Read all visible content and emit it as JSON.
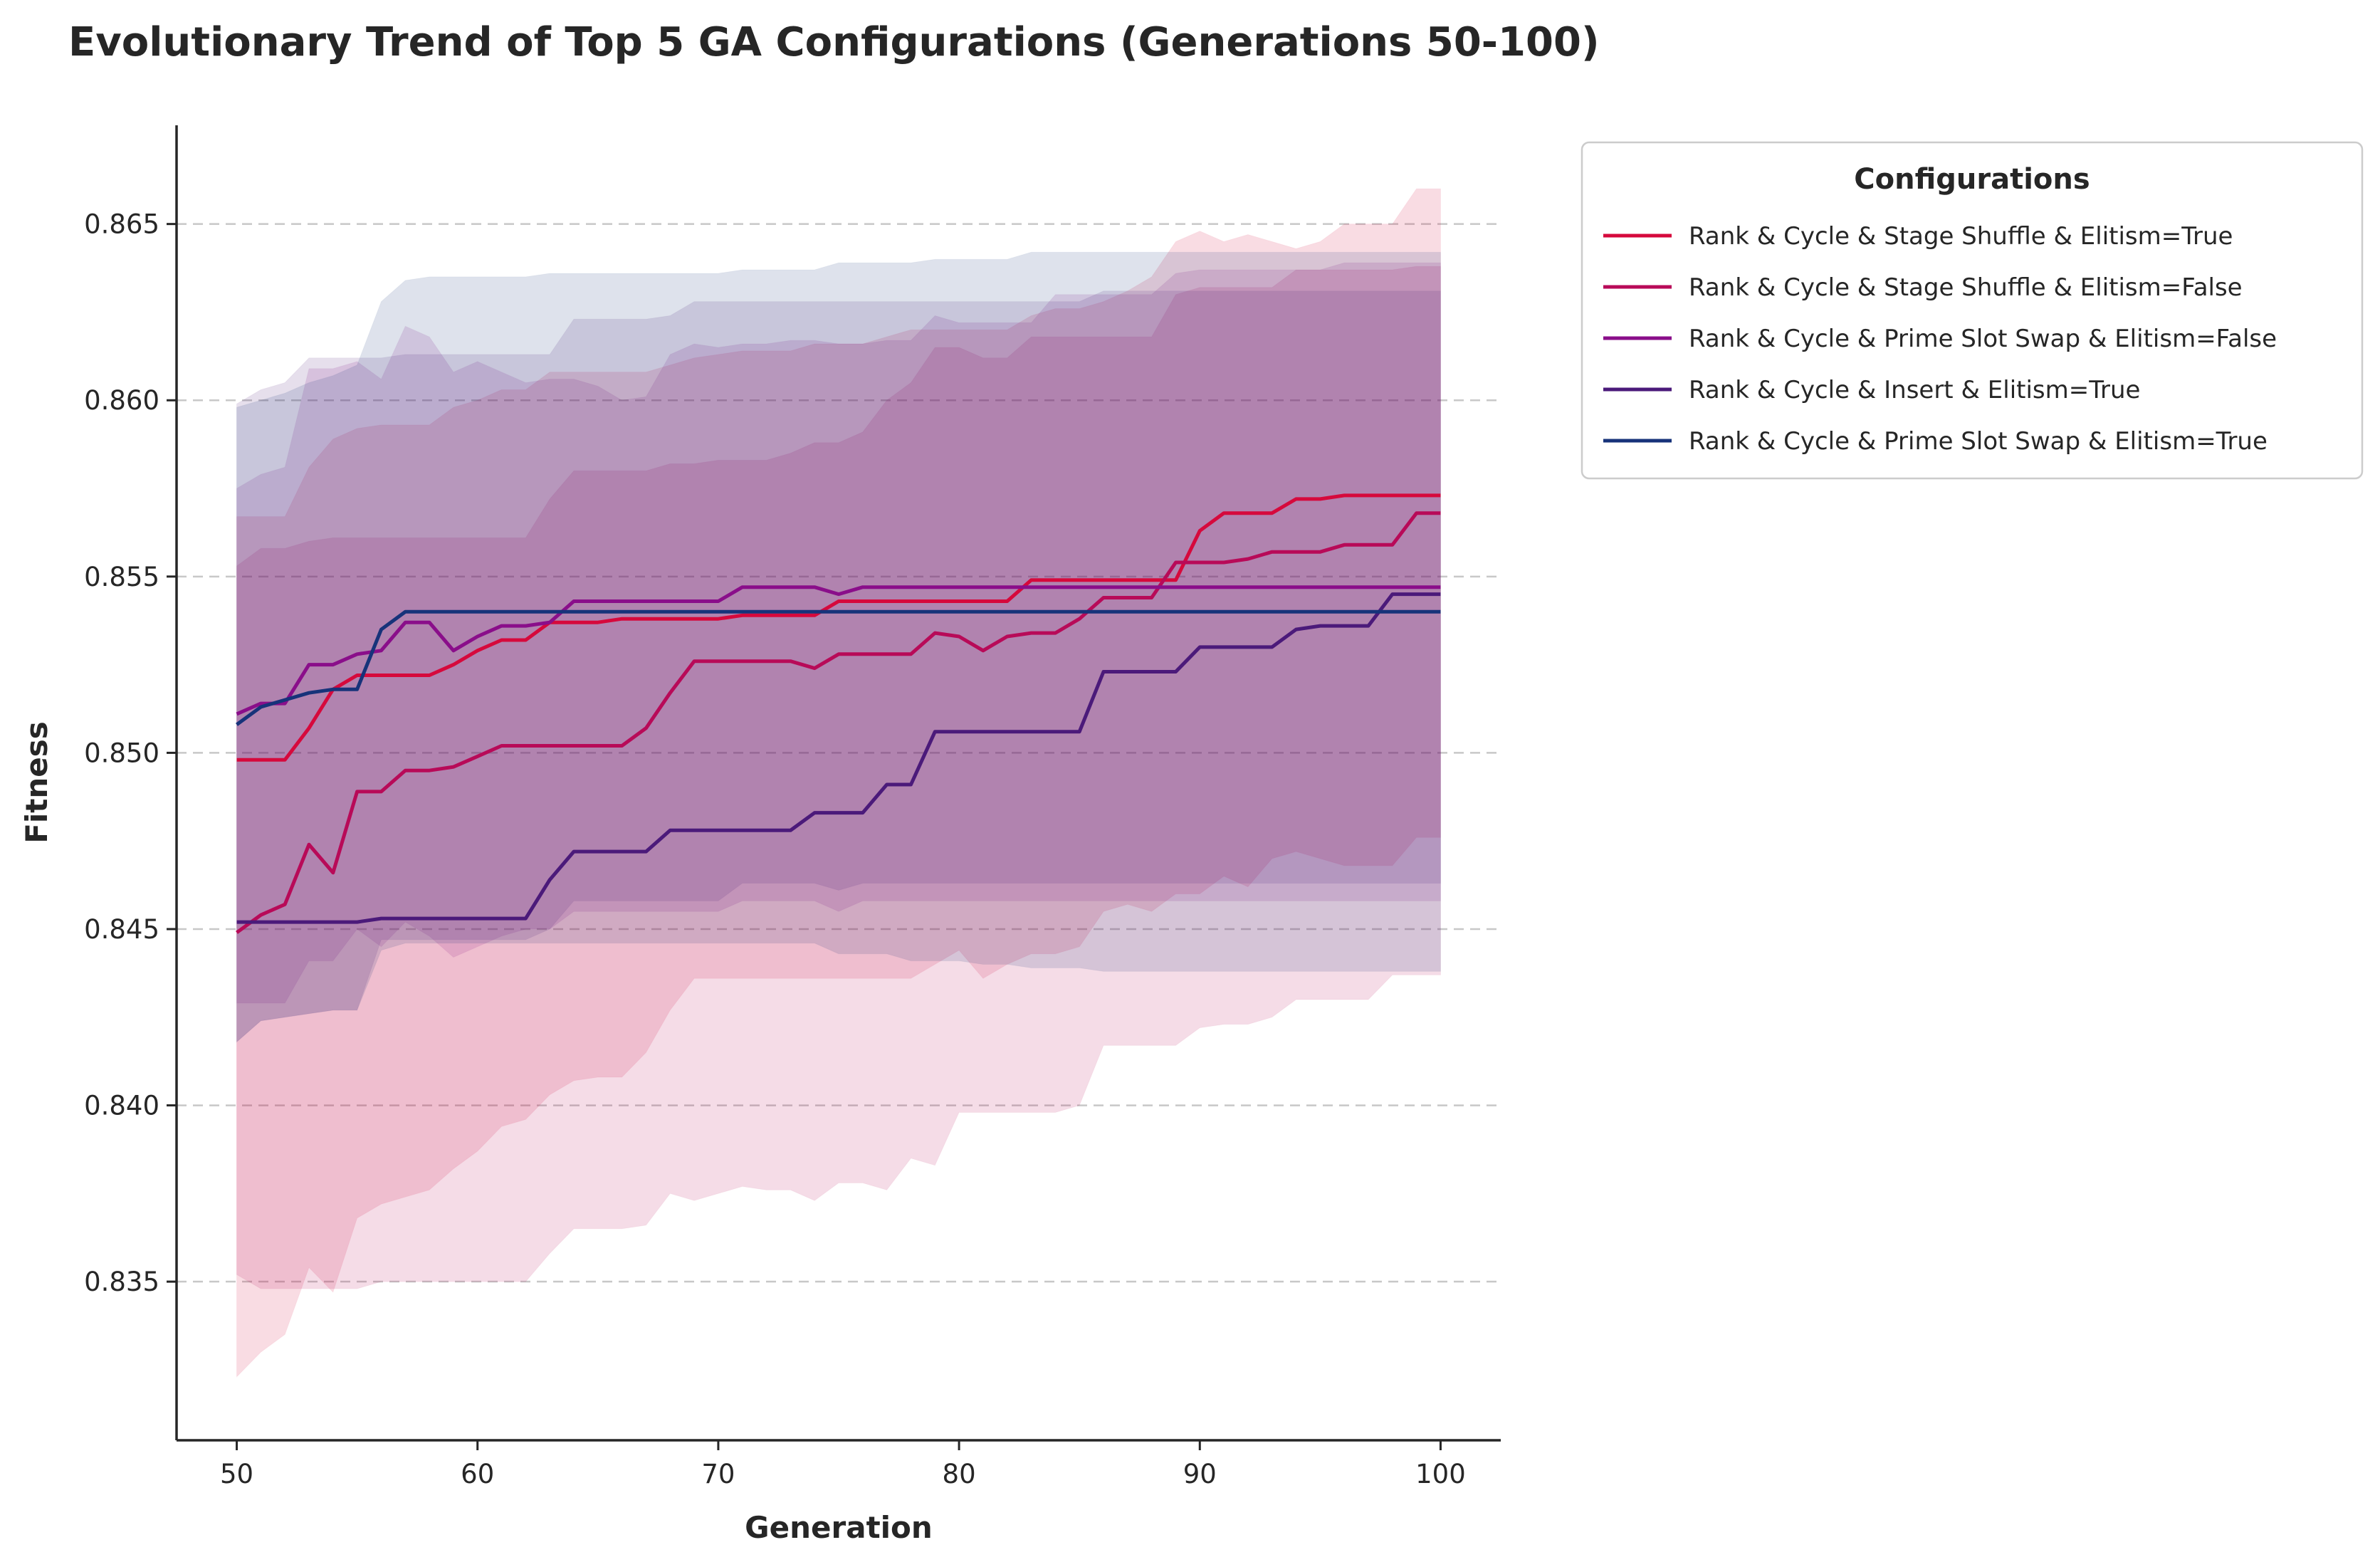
{
  "chart_data": {
    "type": "line",
    "title": "Evolutionary Trend of Top 5 GA Configurations (Generations 50-100)",
    "xlabel": "Generation",
    "ylabel": "Fitness",
    "xlim": [
      47.5,
      102.5
    ],
    "ylim": [
      0.8305,
      0.8678
    ],
    "xticks": [
      50,
      60,
      70,
      80,
      90,
      100
    ],
    "yticks": [
      0.835,
      0.84,
      0.845,
      0.85,
      0.855,
      0.86,
      0.865
    ],
    "xtick_labels": [
      "50",
      "60",
      "70",
      "80",
      "90",
      "100"
    ],
    "ytick_labels": [
      "0.835",
      "0.840",
      "0.845",
      "0.850",
      "0.855",
      "0.860",
      "0.865"
    ],
    "grid": "y-dashed",
    "legend": {
      "title": "Configurations",
      "placement": "outside-top-right"
    },
    "x": [
      50,
      51,
      52,
      53,
      54,
      55,
      56,
      57,
      58,
      59,
      60,
      61,
      62,
      63,
      64,
      65,
      66,
      67,
      68,
      69,
      70,
      71,
      72,
      73,
      74,
      75,
      76,
      77,
      78,
      79,
      80,
      81,
      82,
      83,
      84,
      85,
      86,
      87,
      88,
      89,
      90,
      91,
      92,
      93,
      94,
      95,
      96,
      97,
      98,
      99,
      100
    ],
    "series": [
      {
        "name": "Rank & Cycle & Stage Shuffle & Elitism=True",
        "color": "#d6093c",
        "values": [
          0.8498,
          0.8498,
          0.8498,
          0.8507,
          0.8518,
          0.8522,
          0.8522,
          0.8522,
          0.8522,
          0.8525,
          0.8529,
          0.8532,
          0.8532,
          0.8537,
          0.8537,
          0.8537,
          0.8538,
          0.8538,
          0.8538,
          0.8538,
          0.8538,
          0.8539,
          0.8539,
          0.8539,
          0.8539,
          0.8543,
          0.8543,
          0.8543,
          0.8543,
          0.8543,
          0.8543,
          0.8543,
          0.8543,
          0.8549,
          0.8549,
          0.8549,
          0.8549,
          0.8549,
          0.8549,
          0.8549,
          0.8563,
          0.8568,
          0.8568,
          0.8568,
          0.8572,
          0.8572,
          0.8573,
          0.8573,
          0.8573,
          0.8573,
          0.8573
        ],
        "upper": [
          0.8567,
          0.8567,
          0.8567,
          0.8581,
          0.8589,
          0.8592,
          0.8593,
          0.8593,
          0.8593,
          0.8598,
          0.86,
          0.8603,
          0.8603,
          0.8608,
          0.8608,
          0.8608,
          0.8608,
          0.8608,
          0.861,
          0.8612,
          0.8613,
          0.8614,
          0.8614,
          0.8614,
          0.8616,
          0.8616,
          0.8616,
          0.8618,
          0.862,
          0.862,
          0.862,
          0.862,
          0.862,
          0.8624,
          0.8626,
          0.8626,
          0.8628,
          0.8631,
          0.8635,
          0.8645,
          0.8648,
          0.8645,
          0.8647,
          0.8645,
          0.8643,
          0.8645,
          0.865,
          0.865,
          0.865,
          0.866,
          0.866
        ],
        "lower": [
          0.8323,
          0.833,
          0.8335,
          0.8354,
          0.8347,
          0.8368,
          0.8372,
          0.8374,
          0.8376,
          0.8382,
          0.8387,
          0.8394,
          0.8396,
          0.8403,
          0.8407,
          0.8408,
          0.8408,
          0.8415,
          0.8427,
          0.8436,
          0.8436,
          0.8436,
          0.8436,
          0.8436,
          0.8436,
          0.8436,
          0.8436,
          0.8436,
          0.8436,
          0.844,
          0.8444,
          0.8436,
          0.844,
          0.8443,
          0.8443,
          0.8445,
          0.8455,
          0.8457,
          0.8455,
          0.846,
          0.846,
          0.8465,
          0.8462,
          0.847,
          0.8472,
          0.847,
          0.8468,
          0.8468,
          0.8468,
          0.8476,
          0.8476
        ]
      },
      {
        "name": "Rank & Cycle & Stage Shuffle & Elitism=False",
        "color": "#b80a58",
        "values": [
          0.8449,
          0.8454,
          0.8457,
          0.8474,
          0.8466,
          0.8489,
          0.8489,
          0.8495,
          0.8495,
          0.8496,
          0.8499,
          0.8502,
          0.8502,
          0.8502,
          0.8502,
          0.8502,
          0.8502,
          0.8507,
          0.8517,
          0.8526,
          0.8526,
          0.8526,
          0.8526,
          0.8526,
          0.8524,
          0.8528,
          0.8528,
          0.8528,
          0.8528,
          0.8534,
          0.8533,
          0.8529,
          0.8533,
          0.8534,
          0.8534,
          0.8538,
          0.8544,
          0.8544,
          0.8544,
          0.8554,
          0.8554,
          0.8554,
          0.8555,
          0.8557,
          0.8557,
          0.8557,
          0.8559,
          0.8559,
          0.8559,
          0.8568,
          0.8568
        ],
        "upper": [
          0.8553,
          0.8558,
          0.8558,
          0.856,
          0.8561,
          0.8561,
          0.8561,
          0.8561,
          0.8561,
          0.8561,
          0.8561,
          0.8561,
          0.8561,
          0.8572,
          0.858,
          0.858,
          0.858,
          0.858,
          0.8582,
          0.8582,
          0.8583,
          0.8583,
          0.8583,
          0.8585,
          0.8588,
          0.8588,
          0.8591,
          0.86,
          0.8605,
          0.8615,
          0.8615,
          0.8612,
          0.8612,
          0.8618,
          0.8618,
          0.8618,
          0.8618,
          0.8618,
          0.8618,
          0.863,
          0.8632,
          0.8632,
          0.8632,
          0.8632,
          0.8637,
          0.8637,
          0.8637,
          0.8637,
          0.8637,
          0.8638,
          0.8638
        ],
        "lower": [
          0.8352,
          0.8348,
          0.8348,
          0.8348,
          0.8348,
          0.8348,
          0.835,
          0.835,
          0.835,
          0.835,
          0.835,
          0.835,
          0.835,
          0.8358,
          0.8365,
          0.8365,
          0.8365,
          0.8366,
          0.8375,
          0.8373,
          0.8375,
          0.8377,
          0.8376,
          0.8376,
          0.8373,
          0.8378,
          0.8378,
          0.8376,
          0.8385,
          0.8383,
          0.8398,
          0.8398,
          0.8398,
          0.8398,
          0.8398,
          0.84,
          0.8417,
          0.8417,
          0.8417,
          0.8417,
          0.8422,
          0.8423,
          0.8423,
          0.8425,
          0.843,
          0.843,
          0.843,
          0.843,
          0.8437,
          0.8437,
          0.8437
        ]
      },
      {
        "name": "Rank & Cycle & Prime Slot Swap & Elitism=False",
        "color": "#8a0e8a",
        "values": [
          0.8511,
          0.8514,
          0.8514,
          0.8525,
          0.8525,
          0.8528,
          0.8529,
          0.8537,
          0.8537,
          0.8529,
          0.8533,
          0.8536,
          0.8536,
          0.8537,
          0.8543,
          0.8543,
          0.8543,
          0.8543,
          0.8543,
          0.8543,
          0.8543,
          0.8547,
          0.8547,
          0.8547,
          0.8547,
          0.8545,
          0.8547,
          0.8547,
          0.8547,
          0.8547,
          0.8547,
          0.8547,
          0.8547,
          0.8547,
          0.8547,
          0.8547,
          0.8547,
          0.8547,
          0.8547,
          0.8547,
          0.8547,
          0.8547,
          0.8547,
          0.8547,
          0.8547,
          0.8547,
          0.8547,
          0.8547,
          0.8547,
          0.8547,
          0.8547
        ],
        "upper": [
          0.8575,
          0.8579,
          0.8581,
          0.8609,
          0.8609,
          0.8611,
          0.8606,
          0.8621,
          0.8618,
          0.8608,
          0.8611,
          0.8608,
          0.8605,
          0.8606,
          0.8606,
          0.8604,
          0.86,
          0.8601,
          0.8613,
          0.8616,
          0.8615,
          0.8616,
          0.8616,
          0.8617,
          0.8617,
          0.8616,
          0.8616,
          0.8617,
          0.8617,
          0.8624,
          0.8622,
          0.8622,
          0.8622,
          0.8622,
          0.863,
          0.863,
          0.863,
          0.863,
          0.863,
          0.8636,
          0.8637,
          0.8637,
          0.8637,
          0.8637,
          0.8637,
          0.8637,
          0.8639,
          0.8639,
          0.8639,
          0.8639,
          0.8639
        ],
        "lower": [
          0.8429,
          0.8429,
          0.8429,
          0.8441,
          0.8441,
          0.845,
          0.8445,
          0.8452,
          0.8448,
          0.8442,
          0.8445,
          0.8448,
          0.845,
          0.845,
          0.8455,
          0.8455,
          0.8455,
          0.8455,
          0.8455,
          0.8455,
          0.8455,
          0.8458,
          0.8458,
          0.8458,
          0.8458,
          0.8455,
          0.8458,
          0.8458,
          0.8458,
          0.8458,
          0.8458,
          0.8458,
          0.8458,
          0.8458,
          0.8458,
          0.8458,
          0.8458,
          0.8458,
          0.8458,
          0.8458,
          0.8458,
          0.8458,
          0.8458,
          0.8458,
          0.8458,
          0.8458,
          0.8458,
          0.8458,
          0.8458,
          0.8458,
          0.8458
        ]
      },
      {
        "name": "Rank & Cycle & Insert & Elitism=True",
        "color": "#4b1a7a",
        "values": [
          0.8452,
          0.8452,
          0.8452,
          0.8452,
          0.8452,
          0.8452,
          0.8453,
          0.8453,
          0.8453,
          0.8453,
          0.8453,
          0.8453,
          0.8453,
          0.8464,
          0.8472,
          0.8472,
          0.8472,
          0.8472,
          0.8478,
          0.8478,
          0.8478,
          0.8478,
          0.8478,
          0.8478,
          0.8483,
          0.8483,
          0.8483,
          0.8491,
          0.8491,
          0.8506,
          0.8506,
          0.8506,
          0.8506,
          0.8506,
          0.8506,
          0.8506,
          0.8523,
          0.8523,
          0.8523,
          0.8523,
          0.853,
          0.853,
          0.853,
          0.853,
          0.8535,
          0.8536,
          0.8536,
          0.8536,
          0.8545,
          0.8545,
          0.8545
        ],
        "upper": [
          0.8599,
          0.8603,
          0.8605,
          0.8612,
          0.8612,
          0.8612,
          0.8612,
          0.8613,
          0.8613,
          0.8613,
          0.8613,
          0.8613,
          0.8613,
          0.8613,
          0.8623,
          0.8623,
          0.8623,
          0.8623,
          0.8624,
          0.8628,
          0.8628,
          0.8628,
          0.8628,
          0.8628,
          0.8628,
          0.8628,
          0.8628,
          0.8628,
          0.8628,
          0.8628,
          0.8628,
          0.8628,
          0.8628,
          0.8628,
          0.8628,
          0.8628,
          0.8631,
          0.8631,
          0.8631,
          0.8631,
          0.8631,
          0.8631,
          0.8631,
          0.8631,
          0.8631,
          0.8631,
          0.8631,
          0.8631,
          0.8631,
          0.8631,
          0.8631
        ],
        "lower": [
          0.8418,
          0.8424,
          0.8425,
          0.8426,
          0.8427,
          0.8427,
          0.8447,
          0.8447,
          0.8447,
          0.8447,
          0.8447,
          0.8447,
          0.8447,
          0.845,
          0.8458,
          0.8458,
          0.8458,
          0.8458,
          0.8458,
          0.8458,
          0.8458,
          0.8463,
          0.8463,
          0.8463,
          0.8463,
          0.8461,
          0.8463,
          0.8463,
          0.8463,
          0.8463,
          0.8463,
          0.8463,
          0.8463,
          0.8463,
          0.8463,
          0.8463,
          0.8463,
          0.8463,
          0.8463,
          0.8463,
          0.8463,
          0.8463,
          0.8463,
          0.8463,
          0.8463,
          0.8463,
          0.8463,
          0.8463,
          0.8463,
          0.8463,
          0.8463
        ]
      },
      {
        "name": "Rank & Cycle & Prime Slot Swap & Elitism=True",
        "color": "#17337a",
        "values": [
          0.8508,
          0.8513,
          0.8515,
          0.8517,
          0.8518,
          0.8518,
          0.8535,
          0.854,
          0.854,
          0.854,
          0.854,
          0.854,
          0.854,
          0.854,
          0.854,
          0.854,
          0.854,
          0.854,
          0.854,
          0.854,
          0.854,
          0.854,
          0.854,
          0.854,
          0.854,
          0.854,
          0.854,
          0.854,
          0.854,
          0.854,
          0.854,
          0.854,
          0.854,
          0.854,
          0.854,
          0.854,
          0.854,
          0.854,
          0.854,
          0.854,
          0.854,
          0.854,
          0.854,
          0.854,
          0.854,
          0.854,
          0.854,
          0.854,
          0.854,
          0.854,
          0.854
        ],
        "upper": [
          0.8598,
          0.86,
          0.8602,
          0.8605,
          0.8607,
          0.861,
          0.8628,
          0.8634,
          0.8635,
          0.8635,
          0.8635,
          0.8635,
          0.8635,
          0.8636,
          0.8636,
          0.8636,
          0.8636,
          0.8636,
          0.8636,
          0.8636,
          0.8636,
          0.8637,
          0.8637,
          0.8637,
          0.8637,
          0.8639,
          0.8639,
          0.8639,
          0.8639,
          0.864,
          0.864,
          0.864,
          0.864,
          0.8642,
          0.8642,
          0.8642,
          0.8642,
          0.8642,
          0.8642,
          0.8642,
          0.8642,
          0.8642,
          0.8642,
          0.8642,
          0.8642,
          0.8642,
          0.8642,
          0.8642,
          0.8642,
          0.8642,
          0.8642
        ],
        "lower": [
          0.8418,
          0.8424,
          0.8425,
          0.8426,
          0.8427,
          0.8427,
          0.8444,
          0.8446,
          0.8446,
          0.8446,
          0.8446,
          0.8446,
          0.8446,
          0.8446,
          0.8446,
          0.8446,
          0.8446,
          0.8446,
          0.8446,
          0.8446,
          0.8446,
          0.8446,
          0.8446,
          0.8446,
          0.8446,
          0.8443,
          0.8443,
          0.8443,
          0.8441,
          0.8441,
          0.8441,
          0.844,
          0.844,
          0.8439,
          0.8439,
          0.8439,
          0.8438,
          0.8438,
          0.8438,
          0.8438,
          0.8438,
          0.8438,
          0.8438,
          0.8438,
          0.8438,
          0.8438,
          0.8438,
          0.8438,
          0.8438,
          0.8438,
          0.8438
        ]
      }
    ]
  }
}
